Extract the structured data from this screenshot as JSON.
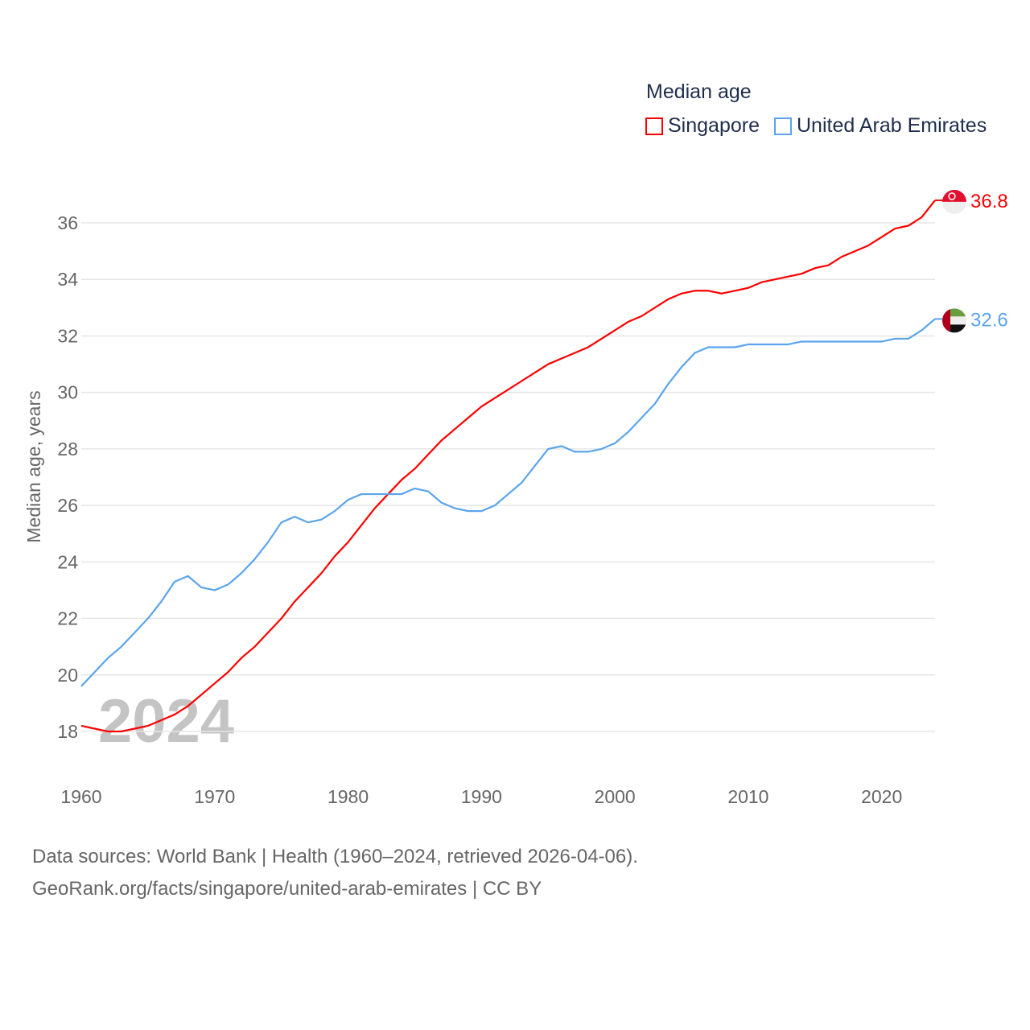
{
  "chart_data": {
    "type": "line",
    "title": "Median age",
    "ylabel": "Median age, years",
    "xlabel": "",
    "xlim": [
      1960,
      2024
    ],
    "ylim": [
      18,
      36
    ],
    "yticks": [
      18,
      20,
      22,
      24,
      26,
      28,
      30,
      32,
      34,
      36
    ],
    "xticks": [
      1960,
      1970,
      1980,
      1990,
      2000,
      2010,
      2020
    ],
    "grid": true,
    "legend_placement": "top-right",
    "watermark_year": "2024",
    "x": [
      1960,
      1961,
      1962,
      1963,
      1964,
      1965,
      1966,
      1967,
      1968,
      1969,
      1970,
      1971,
      1972,
      1973,
      1974,
      1975,
      1976,
      1977,
      1978,
      1979,
      1980,
      1981,
      1982,
      1983,
      1984,
      1985,
      1986,
      1987,
      1988,
      1989,
      1990,
      1991,
      1992,
      1993,
      1994,
      1995,
      1996,
      1997,
      1998,
      1999,
      2000,
      2001,
      2002,
      2003,
      2004,
      2005,
      2006,
      2007,
      2008,
      2009,
      2010,
      2011,
      2012,
      2013,
      2014,
      2015,
      2016,
      2017,
      2018,
      2019,
      2020,
      2021,
      2022,
      2023,
      2024
    ],
    "series": [
      {
        "name": "Singapore",
        "color": "#ff0000",
        "end_label": "36.8",
        "values": [
          18.2,
          18.1,
          18.0,
          18.0,
          18.1,
          18.2,
          18.4,
          18.6,
          18.9,
          19.3,
          19.7,
          20.1,
          20.6,
          21.0,
          21.5,
          22.0,
          22.6,
          23.1,
          23.6,
          24.2,
          24.7,
          25.3,
          25.9,
          26.4,
          26.9,
          27.3,
          27.8,
          28.3,
          28.7,
          29.1,
          29.5,
          29.8,
          30.1,
          30.4,
          30.7,
          31.0,
          31.2,
          31.4,
          31.6,
          31.9,
          32.2,
          32.5,
          32.7,
          33.0,
          33.3,
          33.5,
          33.6,
          33.6,
          33.5,
          33.6,
          33.7,
          33.9,
          34.0,
          34.1,
          34.2,
          34.4,
          34.5,
          34.8,
          35.0,
          35.2,
          35.5,
          35.8,
          35.9,
          36.2,
          36.8
        ]
      },
      {
        "name": "United Arab Emirates",
        "color": "#5ba4ec",
        "end_label": "32.6",
        "values": [
          19.6,
          20.1,
          20.6,
          21.0,
          21.5,
          22.0,
          22.6,
          23.3,
          23.5,
          23.1,
          23.0,
          23.2,
          23.6,
          24.1,
          24.7,
          25.4,
          25.6,
          25.4,
          25.5,
          25.8,
          26.2,
          26.4,
          26.4,
          26.4,
          26.4,
          26.6,
          26.5,
          26.1,
          25.9,
          25.8,
          25.8,
          26.0,
          26.4,
          26.8,
          27.4,
          28.0,
          28.1,
          27.9,
          27.9,
          28.0,
          28.2,
          28.6,
          29.1,
          29.6,
          30.3,
          30.9,
          31.4,
          31.6,
          31.6,
          31.6,
          31.7,
          31.7,
          31.7,
          31.7,
          31.8,
          31.8,
          31.8,
          31.8,
          31.8,
          31.8,
          31.8,
          31.9,
          31.9,
          32.2,
          32.6
        ]
      }
    ]
  },
  "footer": {
    "line1": "Data sources: World Bank | Health (1960–2024, retrieved 2026-04-06).",
    "line2": "GeoRank.org/facts/singapore/united-arab-emirates | CC BY"
  }
}
